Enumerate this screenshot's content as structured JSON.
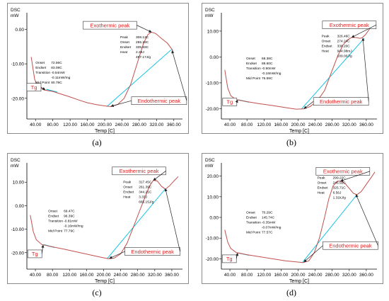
{
  "chart_data": [
    {
      "type": "line",
      "caption": "(a)",
      "ylabel": "DSC\nmW",
      "xlabel": "Temp [C]",
      "xlim": [
        20,
        380
      ],
      "ylim": [
        -26,
        4
      ],
      "xticks": [
        "40.00",
        "80.00",
        "120.00",
        "160.00",
        "200.00",
        "240.00",
        "280.00",
        "320.00",
        "360.00"
      ],
      "yticks": [
        "0.00",
        "-10.00",
        "-20.00"
      ],
      "curve": [
        [
          30,
          -8
        ],
        [
          38,
          -14.5
        ],
        [
          45,
          -16.5
        ],
        [
          60,
          -17.6
        ],
        [
          80,
          -18
        ],
        [
          100,
          -18.8
        ],
        [
          120,
          -19.6
        ],
        [
          140,
          -20.5
        ],
        [
          160,
          -21.3
        ],
        [
          180,
          -21.8
        ],
        [
          200,
          -22.2
        ],
        [
          215,
          -22.4
        ],
        [
          230,
          -21.8
        ],
        [
          245,
          -20
        ],
        [
          260,
          -16
        ],
        [
          275,
          -10
        ],
        [
          290,
          -4
        ],
        [
          300,
          -1.5
        ],
        [
          308,
          -0.8
        ],
        [
          318,
          -1.2
        ],
        [
          330,
          -2.5
        ],
        [
          345,
          -4
        ],
        [
          358,
          -6.2
        ]
      ],
      "baseline": [
        [
          205,
          -22.4
        ],
        [
          355,
          -5.8
        ]
      ],
      "tg_line": [
        [
          65,
          -17.4
        ],
        [
          90,
          -18.2
        ]
      ],
      "annotations": {
        "exo": {
          "label": "Exothermic peak",
          "box": [
            150,
            1.2
          ],
          "arrow_to": [
            308,
            -0.8
          ]
        },
        "endo": {
          "label": "Endothermic peak",
          "box": [
            262,
            -20.7
          ],
          "arrow_to": [
            356,
            -6.2
          ],
          "arrow2_to": [
            215,
            -22.3
          ]
        },
        "tg": {
          "label": "Tg",
          "box": [
            20,
            -16.8
          ],
          "arrow_to": [
            62,
            -17.5
          ]
        }
      },
      "peak_table": {
        "at": [
          236,
          -2.6
        ],
        "rows": [
          [
            "Peak",
            "308.13C"
          ],
          [
            "Onset",
            "255.19C"
          ],
          [
            "Endset",
            "335.83C"
          ],
          [
            "Heat",
            "2.29J"
          ],
          [
            "",
            "457.17J/g"
          ]
        ]
      },
      "tg_table": {
        "at": [
          40,
          -10
        ],
        "rows": [
          [
            "Onset",
            "72.56C"
          ],
          [
            "Endset",
            "83.08C"
          ],
          [
            "Transition",
            "-0.54mW"
          ],
          [
            "",
            "-0.11mW/mg"
          ],
          [
            "Mid Point",
            "80.78C"
          ]
        ]
      }
    },
    {
      "type": "line",
      "caption": "(b)",
      "ylabel": "DSC\nmW",
      "xlabel": "Temp [C]",
      "xlim": [
        20,
        385
      ],
      "ylim": [
        -24,
        16
      ],
      "xticks": [
        "40.00",
        "80.00",
        "120.00",
        "160.00",
        "200.00",
        "240.00",
        "280.00",
        "320.00",
        "360.00"
      ],
      "yticks": [
        "10.00",
        "0.00",
        "-10.00",
        "-20.00"
      ],
      "curve": [
        [
          28,
          -5
        ],
        [
          35,
          -12
        ],
        [
          42,
          -15
        ],
        [
          55,
          -16.5
        ],
        [
          80,
          -17.3
        ],
        [
          110,
          -18.1
        ],
        [
          140,
          -18.8
        ],
        [
          170,
          -19.6
        ],
        [
          195,
          -20.2
        ],
        [
          212,
          -20.1
        ],
        [
          228,
          -19.2
        ],
        [
          245,
          -17
        ],
        [
          262,
          -13
        ],
        [
          278,
          -6
        ],
        [
          292,
          0
        ],
        [
          305,
          4.6
        ],
        [
          316,
          6.6
        ],
        [
          326,
          7.6
        ],
        [
          336,
          7.5
        ],
        [
          345,
          7.2
        ],
        [
          350,
          7.4
        ],
        [
          358,
          8.6
        ],
        [
          366,
          10.4
        ],
        [
          373,
          12.3
        ]
      ],
      "baseline": [
        [
          208,
          -20.1
        ],
        [
          355,
          7.2
        ]
      ],
      "tg_line": [
        [
          60,
          -16.6
        ],
        [
          85,
          -17.5
        ]
      ],
      "annotations": {
        "exo": {
          "label": "Exothermic peak",
          "box": [
            257,
            12.4
          ],
          "arrow_to": [
            326,
            7.6
          ]
        },
        "endo": {
          "label": "Endothermic peak",
          "box": [
            236,
            -17.2
          ],
          "arrow_to": [
            352,
            7.2
          ],
          "arrow2_to": [
            214,
            -20
          ]
        },
        "tg": {
          "label": "Tg",
          "box": [
            23,
            -17.4
          ],
          "arrow_to": [
            58,
            -16.7
          ]
        }
      },
      "peak_table": {
        "at": [
          255,
          7.6
        ],
        "rows": [
          [
            "Peak",
            "326.46C"
          ],
          [
            "Onset",
            "274.24C"
          ],
          [
            "Endset",
            "338.20C"
          ],
          [
            "Heat",
            "944.98mJ"
          ],
          [
            "",
            "189.00J/g"
          ]
        ]
      },
      "tg_table": {
        "at": [
          78,
          -1
        ],
        "rows": [
          [
            "Onset",
            "68.38C"
          ],
          [
            "Endset",
            "88.60C"
          ],
          [
            "Transition",
            "-0.90mW"
          ],
          [
            "",
            "-0.18mW/mg"
          ],
          [
            "Mid Point",
            "76.59C"
          ]
        ]
      }
    },
    {
      "type": "line",
      "caption": "(c)",
      "ylabel": "DSC\nmW",
      "xlabel": "Temp [C]",
      "xlim": [
        20,
        385
      ],
      "ylim": [
        -27,
        17
      ],
      "xticks": [
        "40.00",
        "80.00",
        "120.00",
        "160.00",
        "200.00",
        "240.00",
        "280.00",
        "320.00",
        "360.00"
      ],
      "yticks": [
        "10.00",
        "0.00",
        "-10.00",
        "-20.00"
      ],
      "curve": [
        [
          28,
          -4
        ],
        [
          35,
          -11
        ],
        [
          42,
          -14.5
        ],
        [
          55,
          -16.5
        ],
        [
          80,
          -17.5
        ],
        [
          110,
          -18.6
        ],
        [
          140,
          -19.8
        ],
        [
          170,
          -21
        ],
        [
          195,
          -22
        ],
        [
          212,
          -22.6
        ],
        [
          225,
          -22.3
        ],
        [
          240,
          -20.5
        ],
        [
          255,
          -16
        ],
        [
          270,
          -9
        ],
        [
          285,
          -2
        ],
        [
          298,
          4
        ],
        [
          308,
          8.5
        ],
        [
          317,
          10.8
        ],
        [
          326,
          10.5
        ],
        [
          336,
          8.2
        ],
        [
          345,
          7
        ],
        [
          355,
          8.5
        ],
        [
          365,
          10.5
        ],
        [
          375,
          12.4
        ]
      ],
      "baseline": [
        [
          208,
          -22.6
        ],
        [
          345,
          7.2
        ]
      ],
      "tg_line": [
        [
          60,
          -16.6
        ],
        [
          85,
          -17.8
        ]
      ],
      "annotations": {
        "exo": {
          "label": "Exothermic peak",
          "box": [
            220,
            14.8
          ],
          "arrow_to": [
            317,
            10.8
          ]
        },
        "endo": {
          "label": "Endothermic peak",
          "box": [
            250,
            -19.5
          ],
          "arrow_to": [
            345,
            7.2
          ],
          "arrow2_to": [
            214,
            -22.4
          ]
        },
        "tg": {
          "label": "Tg",
          "box": [
            22,
            -20.5
          ],
          "arrow_to": [
            58,
            -16.8
          ]
        }
      },
      "peak_table": {
        "at": [
          246,
          9.6
        ],
        "rows": [
          [
            "Peak",
            "317.45C"
          ],
          [
            "Onset",
            "261.39C"
          ],
          [
            "Endset",
            "344.21C"
          ],
          [
            "Heat",
            "3.33J"
          ],
          [
            "",
            "665.15J/g"
          ]
        ]
      },
      "tg_table": {
        "at": [
          70,
          -2.8
        ],
        "rows": [
          [
            "Onset",
            "69.47C"
          ],
          [
            "Endset",
            "96.39C"
          ],
          [
            "Transition",
            "-0.81mW"
          ],
          [
            "",
            "-0.16mW/mg"
          ],
          [
            "Mid Point",
            "77.79C"
          ]
        ]
      }
    },
    {
      "type": "line",
      "caption": "(d)",
      "ylabel": "DSC\nmW",
      "xlabel": "Temp [C]",
      "xlim": [
        20,
        385
      ],
      "ylim": [
        -25,
        25
      ],
      "xticks": [
        "40.00",
        "80.00",
        "120.00",
        "160.00",
        "200.00",
        "240.00",
        "280.00",
        "320.00",
        "360.00"
      ],
      "yticks": [
        "20.00",
        "10.00",
        "0.00",
        "-10.00",
        "-20.00"
      ],
      "curve": [
        [
          28,
          -6
        ],
        [
          35,
          -12
        ],
        [
          42,
          -15
        ],
        [
          55,
          -17
        ],
        [
          80,
          -18
        ],
        [
          110,
          -19
        ],
        [
          140,
          -20
        ],
        [
          170,
          -21
        ],
        [
          195,
          -21.5
        ],
        [
          212,
          -21.8
        ],
        [
          225,
          -21
        ],
        [
          238,
          -17
        ],
        [
          250,
          -10
        ],
        [
          262,
          0
        ],
        [
          272,
          9
        ],
        [
          282,
          15.2
        ],
        [
          292,
          17.5
        ],
        [
          300,
          17.6
        ],
        [
          310,
          16.5
        ],
        [
          320,
          14
        ],
        [
          330,
          11.6
        ],
        [
          338,
          11
        ],
        [
          348,
          12.5
        ],
        [
          360,
          16
        ],
        [
          372,
          19.5
        ],
        [
          380,
          22
        ]
      ],
      "baseline": [
        [
          210,
          -21.8
        ],
        [
          338,
          11
        ]
      ],
      "tg_line": [
        [
          60,
          -17.2
        ],
        [
          85,
          -18.3
        ]
      ],
      "annotations": {
        "exo": {
          "label": "Exothermic peak",
          "box": [
            242,
            22.3
          ],
          "arrow_to": [
            300,
            17.6
          ]
        },
        "endo": {
          "label": "Endothermic peak",
          "box": [
            258,
            -13.6
          ],
          "arrow_to": [
            336,
            11
          ],
          "arrow2_to": [
            214,
            -21.5
          ]
        },
        "tg": {
          "label": "Tg",
          "box": [
            22,
            -20
          ],
          "arrow_to": [
            58,
            -17.3
          ]
        }
      },
      "peak_table": {
        "at": [
          245,
          18.6
        ],
        "rows": [
          [
            "Peak",
            "299.22C"
          ],
          [
            "Onset",
            "246.92C"
          ],
          [
            "Endset",
            "325.71C"
          ],
          [
            "Heat",
            "6.56J"
          ],
          [
            "",
            "1.31kJ/g"
          ]
        ]
      },
      "tg_table": {
        "at": [
          78,
          1.8
        ],
        "rows": [
          [
            "Onset",
            "70.29C"
          ],
          [
            "Endset",
            "145.74C"
          ],
          [
            "Transition",
            "-0.35mW"
          ],
          [
            "",
            "-0.07mW/mg"
          ],
          [
            "Mid Point",
            "77.57C"
          ]
        ]
      }
    }
  ],
  "colors": {
    "curve": "#c0504d",
    "baseline": "#00bfe0",
    "tg_line": "#00bfe0",
    "label_text": "#e02020",
    "arrow": "#222222",
    "frame": "#8a8a8a"
  }
}
